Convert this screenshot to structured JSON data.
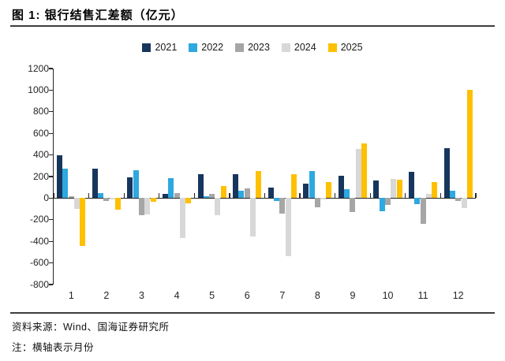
{
  "header": {
    "title": "图 1: 银行结售汇差额（亿元）"
  },
  "footer": {
    "source": "资料来源：Wind、国海证券研究所",
    "note": "注：横轴表示月份"
  },
  "chart_data": {
    "type": "bar",
    "title": "银行结售汇差额（亿元）",
    "xlabel": "月份",
    "ylabel": "",
    "categories": [
      "1",
      "2",
      "3",
      "4",
      "5",
      "6",
      "7",
      "8",
      "9",
      "10",
      "11",
      "12"
    ],
    "series": [
      {
        "name": "2021",
        "color": "#17365D",
        "values": [
          400,
          275,
          195,
          40,
          225,
          220,
          100,
          135,
          210,
          160,
          245,
          465
        ]
      },
      {
        "name": "2022",
        "color": "#2EA8E0",
        "values": [
          270,
          45,
          260,
          185,
          20,
          70,
          -25,
          250,
          85,
          -120,
          -55,
          70
        ]
      },
      {
        "name": "2023",
        "color": "#A6A6A6",
        "values": [
          20,
          -25,
          -160,
          50,
          40,
          90,
          -140,
          -85,
          -130,
          -60,
          -240,
          -25
        ]
      },
      {
        "name": "2024",
        "color": "#D8D8D8",
        "values": [
          -100,
          -10,
          -150,
          -370,
          -160,
          -355,
          -540,
          -15,
          455,
          175,
          40,
          -95
        ]
      },
      {
        "name": "2025",
        "color": "#FFC000",
        "values": [
          -445,
          -105,
          -30,
          -45,
          110,
          250,
          220,
          150,
          505,
          170,
          150,
          1000
        ]
      }
    ],
    "ylim": [
      -800,
      1200
    ],
    "ytick_step": 200,
    "grid": false,
    "legend_position": "top",
    "axis_color": "#262626",
    "text_color": "#262626"
  }
}
